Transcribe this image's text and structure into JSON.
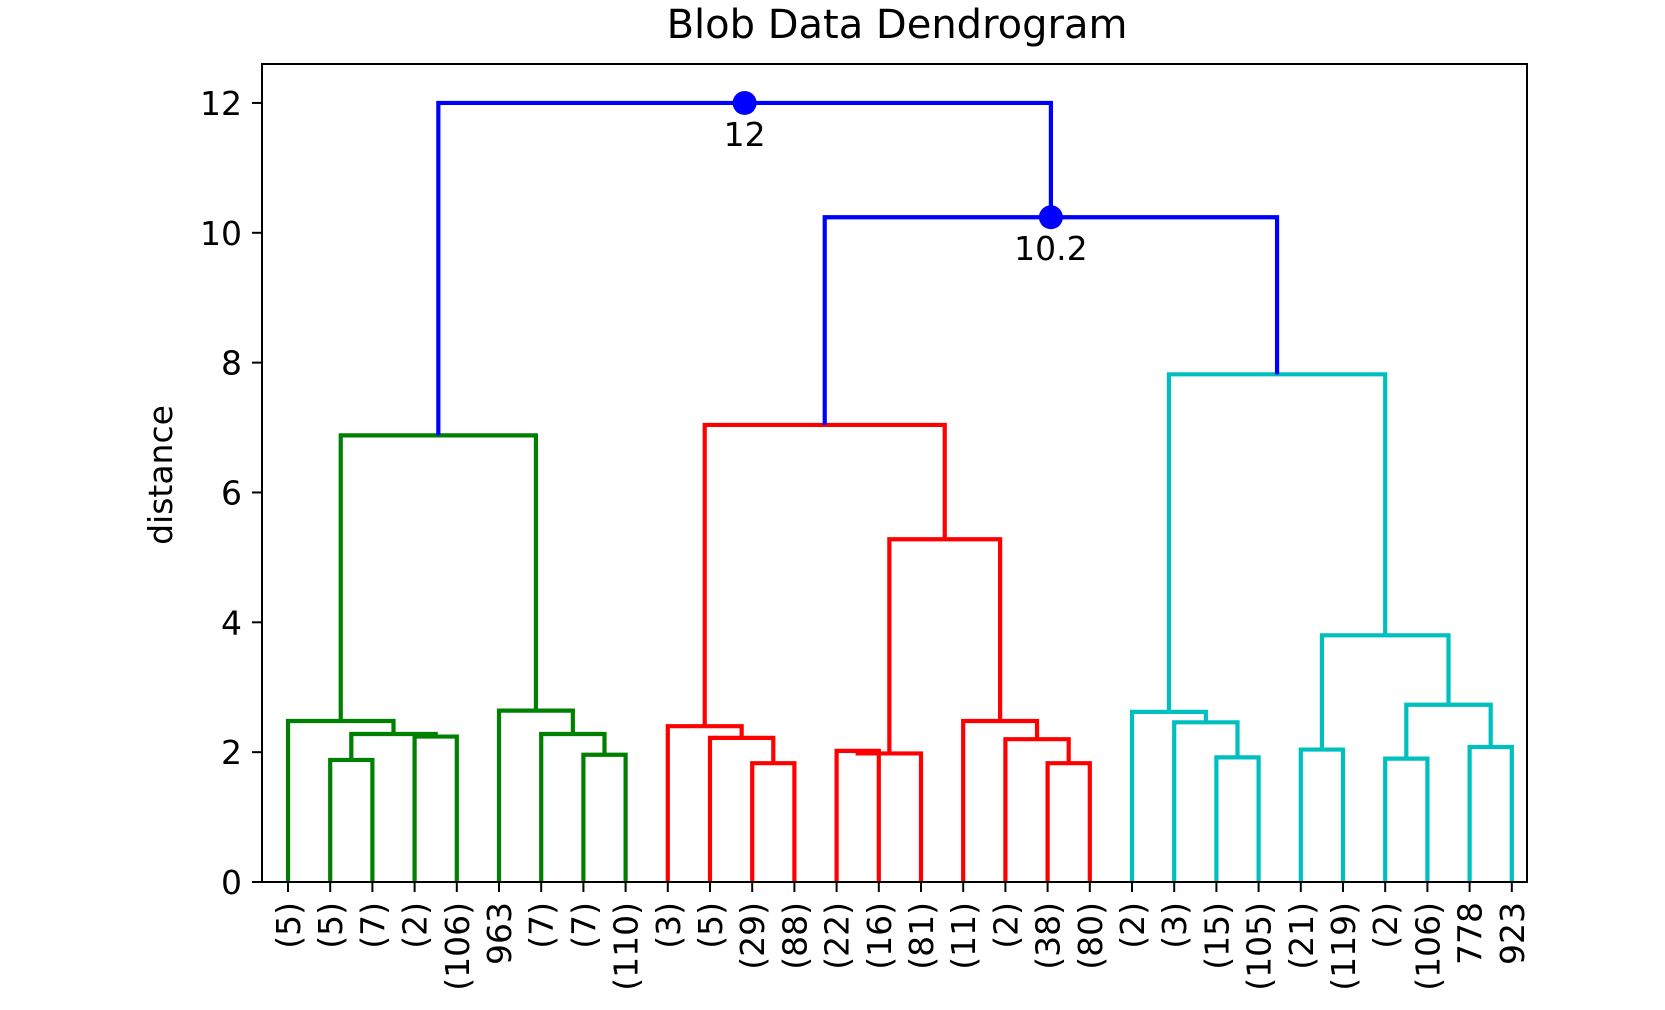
{
  "chart_data": {
    "type": "dendrogram",
    "title": "Blob Data Dendrogram",
    "xlabel": "",
    "ylabel": "distance",
    "ylim": [
      0,
      12.6
    ],
    "y_ticks": [
      0,
      2,
      4,
      6,
      8,
      10,
      12
    ],
    "leaf_labels": [
      "(5)",
      "(5)",
      "(7)",
      "(2)",
      "(106)",
      "963",
      "(7)",
      "(7)",
      "(110)",
      "(3)",
      "(5)",
      "(29)",
      "(88)",
      "(22)",
      "(16)",
      "(81)",
      "(11)",
      "(2)",
      "(38)",
      "(80)",
      "(2)",
      "(3)",
      "(15)",
      "(105)",
      "(21)",
      "(119)",
      "(2)",
      "(106)",
      "778",
      "923"
    ],
    "links": [
      {
        "left": 1,
        "right": 2,
        "height": 1.88,
        "color": "#008000"
      },
      {
        "left": 3,
        "right": 4,
        "height": 2.24,
        "color": "#008000"
      },
      {
        "left": 30,
        "right": 31,
        "height": 2.28,
        "color": "#008000"
      },
      {
        "left": 0,
        "right": 32,
        "height": 2.48,
        "color": "#008000"
      },
      {
        "left": 7,
        "right": 8,
        "height": 1.96,
        "color": "#008000"
      },
      {
        "left": 6,
        "right": 34,
        "height": 2.28,
        "color": "#008000"
      },
      {
        "left": 5,
        "right": 35,
        "height": 2.64,
        "color": "#008000"
      },
      {
        "left": 33,
        "right": 36,
        "height": 6.88,
        "color": "#008000"
      },
      {
        "left": 11,
        "right": 12,
        "height": 1.83,
        "color": "#ff0000"
      },
      {
        "left": 10,
        "right": 38,
        "height": 2.22,
        "color": "#ff0000"
      },
      {
        "left": 9,
        "right": 39,
        "height": 2.4,
        "color": "#ff0000"
      },
      {
        "left": 13,
        "right": 14,
        "height": 2.02,
        "color": "#ff0000"
      },
      {
        "left": 41,
        "right": 15,
        "height": 1.98,
        "color": "#ff0000"
      },
      {
        "left": 18,
        "right": 19,
        "height": 1.83,
        "color": "#ff0000"
      },
      {
        "left": 17,
        "right": 43,
        "height": 2.2,
        "color": "#ff0000"
      },
      {
        "left": 16,
        "right": 44,
        "height": 2.48,
        "color": "#ff0000"
      },
      {
        "left": 42,
        "right": 45,
        "height": 5.28,
        "color": "#ff0000"
      },
      {
        "left": 40,
        "right": 46,
        "height": 7.04,
        "color": "#ff0000"
      },
      {
        "left": 22,
        "right": 23,
        "height": 1.92,
        "color": "#00bfbf"
      },
      {
        "left": 21,
        "right": 48,
        "height": 2.46,
        "color": "#00bfbf"
      },
      {
        "left": 20,
        "right": 49,
        "height": 2.62,
        "color": "#00bfbf"
      },
      {
        "left": 24,
        "right": 25,
        "height": 2.04,
        "color": "#00bfbf"
      },
      {
        "left": 26,
        "right": 27,
        "height": 1.9,
        "color": "#00bfbf"
      },
      {
        "left": 28,
        "right": 29,
        "height": 2.08,
        "color": "#00bfbf"
      },
      {
        "left": 52,
        "right": 53,
        "height": 2.73,
        "color": "#00bfbf"
      },
      {
        "left": 51,
        "right": 54,
        "height": 3.8,
        "color": "#00bfbf"
      },
      {
        "left": 50,
        "right": 55,
        "height": 7.82,
        "color": "#00bfbf"
      },
      {
        "left": 47,
        "right": 56,
        "height": 10.24,
        "color": "#0000ff"
      },
      {
        "left": 37,
        "right": 57,
        "height": 12.0,
        "color": "#0000ff"
      }
    ],
    "annotations": [
      {
        "link": 28,
        "text": "12"
      },
      {
        "link": 27,
        "text": "10.2"
      }
    ],
    "colors": {
      "cluster_1": "#008000",
      "cluster_2": "#ff0000",
      "cluster_3": "#00bfbf",
      "top_links": "#0000ff",
      "axis": "#000000"
    }
  }
}
